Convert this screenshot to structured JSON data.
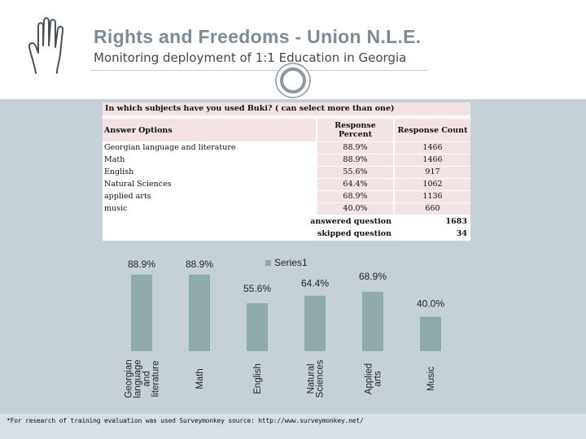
{
  "header": {
    "title": "Rights and Freedoms - Union N.L.E.",
    "subtitle": "Monitoring deployment of 1:1 Education in Georgia"
  },
  "survey": {
    "question": "In which subjects have you used Buki?  ( can select more than one)",
    "columns": {
      "options": "Answer Options",
      "percent_line1": "Response",
      "percent_line2": "Percent",
      "count": "Response Count"
    },
    "rows": [
      {
        "option": "Georgian language and literature",
        "percent": "88.9%",
        "count": "1466"
      },
      {
        "option": "Math",
        "percent": "88.9%",
        "count": "1466"
      },
      {
        "option": "English",
        "percent": "55.6%",
        "count": "917"
      },
      {
        "option": "Natural Sciences",
        "percent": "64.4%",
        "count": "1062"
      },
      {
        "option": "applied arts",
        "percent": "68.9%",
        "count": "1136"
      },
      {
        "option": "music",
        "percent": "40.0%",
        "count": "660"
      }
    ],
    "summary": [
      {
        "label": "answered question",
        "value": "1683"
      },
      {
        "label": "skipped question",
        "value": "34"
      }
    ]
  },
  "chart_data": {
    "type": "bar",
    "title": "",
    "legend": "Series1",
    "legend_position": "top",
    "categories": [
      "Georgian language and literature",
      "Math",
      "English",
      "Natural Sciences",
      "Applied arts",
      "Music"
    ],
    "category_lines": [
      [
        "Georgian",
        "language",
        "and",
        "literature"
      ],
      [
        "Math"
      ],
      [
        "English"
      ],
      [
        "Natural",
        "Sciences"
      ],
      [
        "Applied",
        "arts"
      ],
      [
        "Music"
      ]
    ],
    "series": [
      {
        "name": "Series1",
        "values": [
          88.9,
          88.9,
          55.6,
          64.4,
          68.9,
          40.0
        ]
      }
    ],
    "data_labels": [
      "88.9%",
      "88.9%",
      "55.6%",
      "64.4%",
      "68.9%",
      "40.0%"
    ],
    "ylim": [
      0,
      100
    ],
    "grid": false,
    "bar_color": "#8eaaa9"
  },
  "footer": {
    "note": "*For research of training evaluation was used Surveymonkey source: http://www.surveymonkey.net/"
  },
  "icons": {
    "hand": "hand-icon",
    "circle": "circle-icon"
  },
  "colors": {
    "title": "#7d8c96",
    "panel": "#c5d0d7",
    "table_highlight": "#f3e3e4",
    "bar": "#8eaaa9"
  }
}
